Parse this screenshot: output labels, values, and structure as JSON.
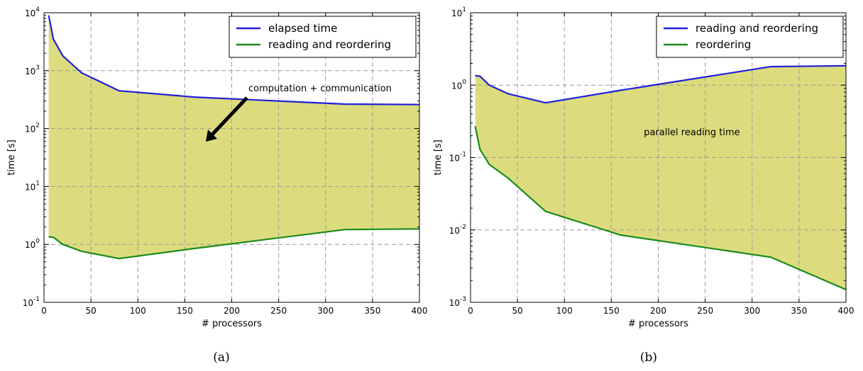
{
  "chart_data": [
    {
      "type": "line",
      "caption": "(a)",
      "xlabel": "# processors",
      "ylabel": "time [s]",
      "xlim": [
        0,
        400
      ],
      "ylim": [
        0.1,
        10000
      ],
      "yscale": "log",
      "xticks": [
        "0",
        "50",
        "100",
        "150",
        "200",
        "250",
        "300",
        "350",
        "400"
      ],
      "yticks": [
        {
          "base": "10",
          "exp": "-1"
        },
        {
          "base": "10",
          "exp": "0"
        },
        {
          "base": "10",
          "exp": "1"
        },
        {
          "base": "10",
          "exp": "2"
        },
        {
          "base": "10",
          "exp": "3"
        },
        {
          "base": "10",
          "exp": "4"
        }
      ],
      "grid": true,
      "legend": "top-right",
      "fill_between": {
        "color": "#dcdc7e"
      },
      "annotation": {
        "text": "computation + communication",
        "arrow": true
      },
      "series": [
        {
          "name": "elapsed time",
          "color": "#1f1fdc",
          "x": [
            5,
            10,
            20,
            40,
            80,
            160,
            320,
            400
          ],
          "y": [
            9000,
            3500,
            1800,
            920,
            450,
            350,
            265,
            260
          ]
        },
        {
          "name": "reading and reordering",
          "color": "#1a8a1a",
          "x": [
            5,
            10,
            20,
            40,
            80,
            160,
            320,
            400
          ],
          "y": [
            1.35,
            1.33,
            1.0,
            0.76,
            0.57,
            0.85,
            1.8,
            1.85
          ]
        }
      ]
    },
    {
      "type": "line",
      "caption": "(b)",
      "xlabel": "# processors",
      "ylabel": "time [s]",
      "xlim": [
        0,
        400
      ],
      "ylim": [
        0.001,
        10
      ],
      "yscale": "log",
      "xticks": [
        "0",
        "50",
        "100",
        "150",
        "200",
        "250",
        "300",
        "350",
        "400"
      ],
      "yticks": [
        {
          "base": "10",
          "exp": "-3"
        },
        {
          "base": "10",
          "exp": "-2"
        },
        {
          "base": "10",
          "exp": "-1"
        },
        {
          "base": "10",
          "exp": "0"
        },
        {
          "base": "10",
          "exp": "1"
        }
      ],
      "grid": true,
      "legend": "top-right",
      "fill_between": {
        "color": "#dcdc7e"
      },
      "annotation": {
        "text": "parallel reading time",
        "arrow": false
      },
      "series": [
        {
          "name": "reading and reordering",
          "color": "#1f1fdc",
          "x": [
            5,
            10,
            20,
            40,
            80,
            160,
            320,
            400
          ],
          "y": [
            1.35,
            1.33,
            1.0,
            0.76,
            0.57,
            0.85,
            1.8,
            1.85
          ]
        },
        {
          "name": "reordering",
          "color": "#1a8a1a",
          "x": [
            5,
            10,
            20,
            40,
            80,
            160,
            320,
            400
          ],
          "y": [
            0.27,
            0.13,
            0.08,
            0.052,
            0.018,
            0.0085,
            0.0042,
            0.0015
          ]
        }
      ]
    }
  ]
}
